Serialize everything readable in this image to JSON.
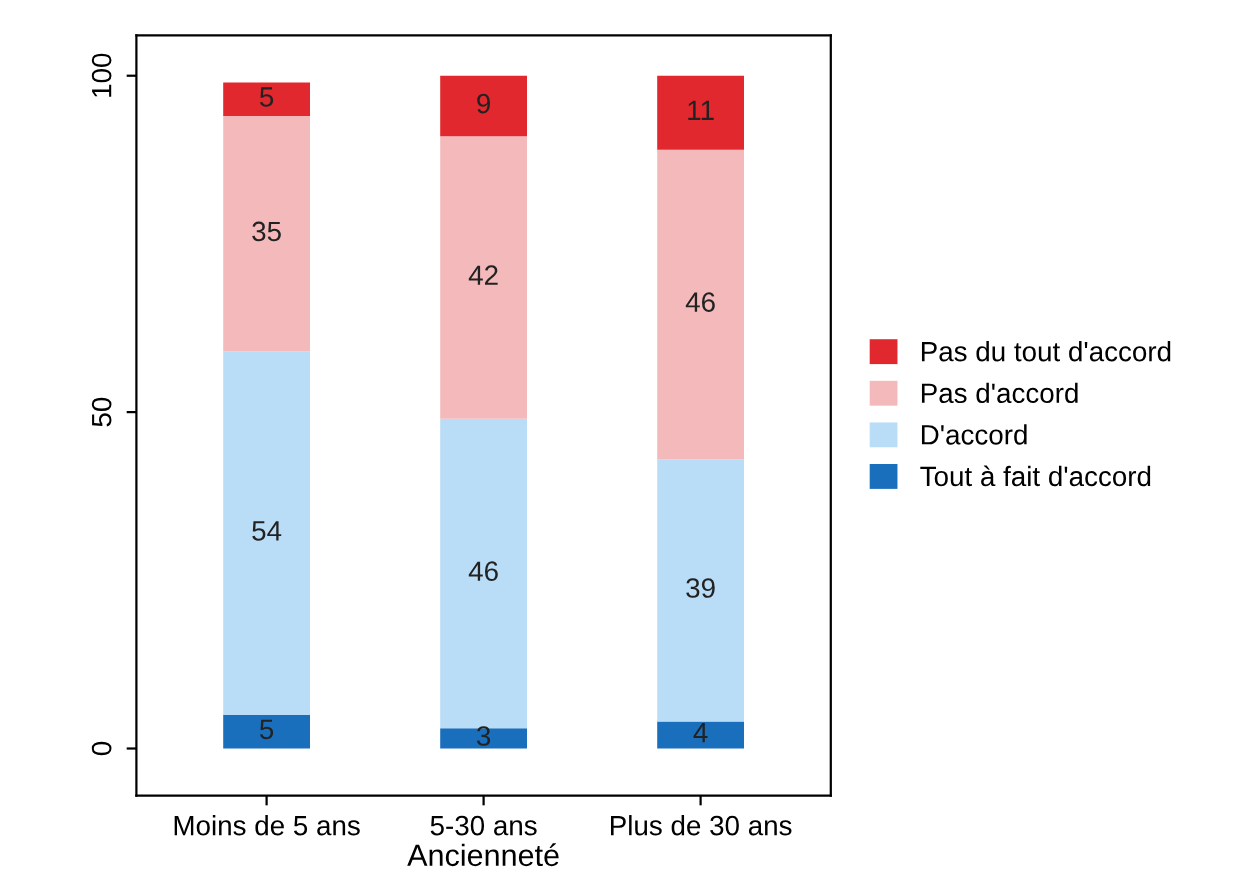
{
  "chart_data": {
    "type": "bar",
    "stacked": true,
    "xlabel": "Ancienneté",
    "categories": [
      "Moins de 5 ans",
      "5-30 ans",
      "Plus de 30 ans"
    ],
    "series": [
      {
        "name": "Tout à fait d'accord",
        "color": "#1a6fbd",
        "values": [
          5,
          3,
          4
        ]
      },
      {
        "name": "D'accord",
        "color": "#b9dcf7",
        "values": [
          54,
          46,
          39
        ]
      },
      {
        "name": "Pas d'accord",
        "color": "#f4b9bb",
        "values": [
          35,
          42,
          46
        ]
      },
      {
        "name": "Pas du tout d'accord",
        "color": "#e0282e",
        "values": [
          5,
          9,
          11
        ]
      }
    ],
    "ylim": [
      -7,
      106
    ],
    "yticks": [
      0,
      50,
      100
    ],
    "grid": false,
    "legend": "right",
    "data_labels": true
  }
}
